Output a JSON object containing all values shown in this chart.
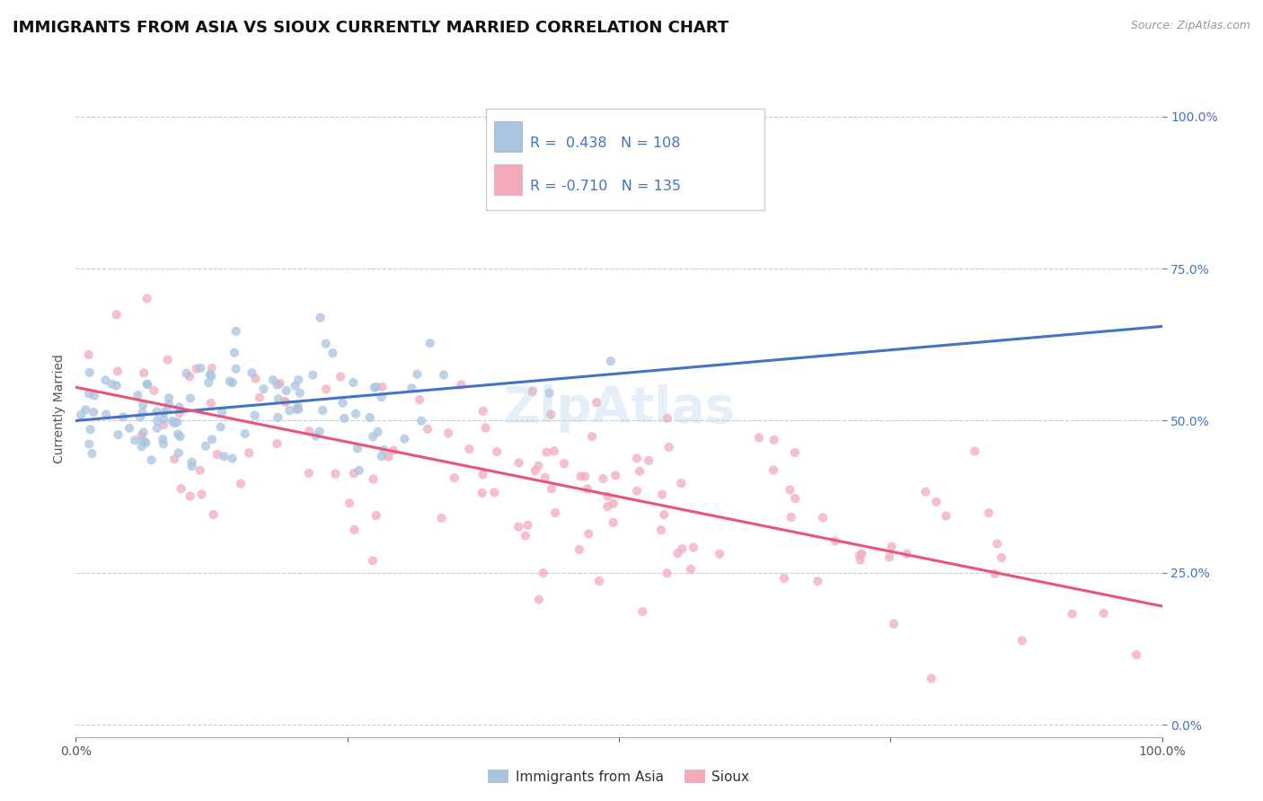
{
  "title": "IMMIGRANTS FROM ASIA VS SIOUX CURRENTLY MARRIED CORRELATION CHART",
  "source": "Source: ZipAtlas.com",
  "ylabel": "Currently Married",
  "xlim": [
    0,
    1
  ],
  "ylim": [
    0,
    1
  ],
  "ytick_labels": [
    "0.0%",
    "25.0%",
    "50.0%",
    "75.0%",
    "100.0%"
  ],
  "ytick_values": [
    0,
    0.25,
    0.5,
    0.75,
    1.0
  ],
  "blue_R": 0.438,
  "blue_N": 108,
  "pink_R": -0.71,
  "pink_N": 135,
  "blue_color": "#A8C4E0",
  "pink_color": "#F4AABC",
  "blue_line_color": "#4472C4",
  "pink_line_color": "#E8557A",
  "legend_label_blue": "Immigrants from Asia",
  "legend_label_pink": "Sioux",
  "watermark": "ZipAtlas",
  "title_fontsize": 13,
  "axis_label_fontsize": 10,
  "tick_fontsize": 10,
  "source_fontsize": 9,
  "background_color": "#FFFFFF",
  "grid_color": "#CCCCCC",
  "blue_line_start_y": 0.5,
  "blue_line_end_y": 0.655,
  "pink_line_start_y": 0.555,
  "pink_line_end_y": 0.195
}
